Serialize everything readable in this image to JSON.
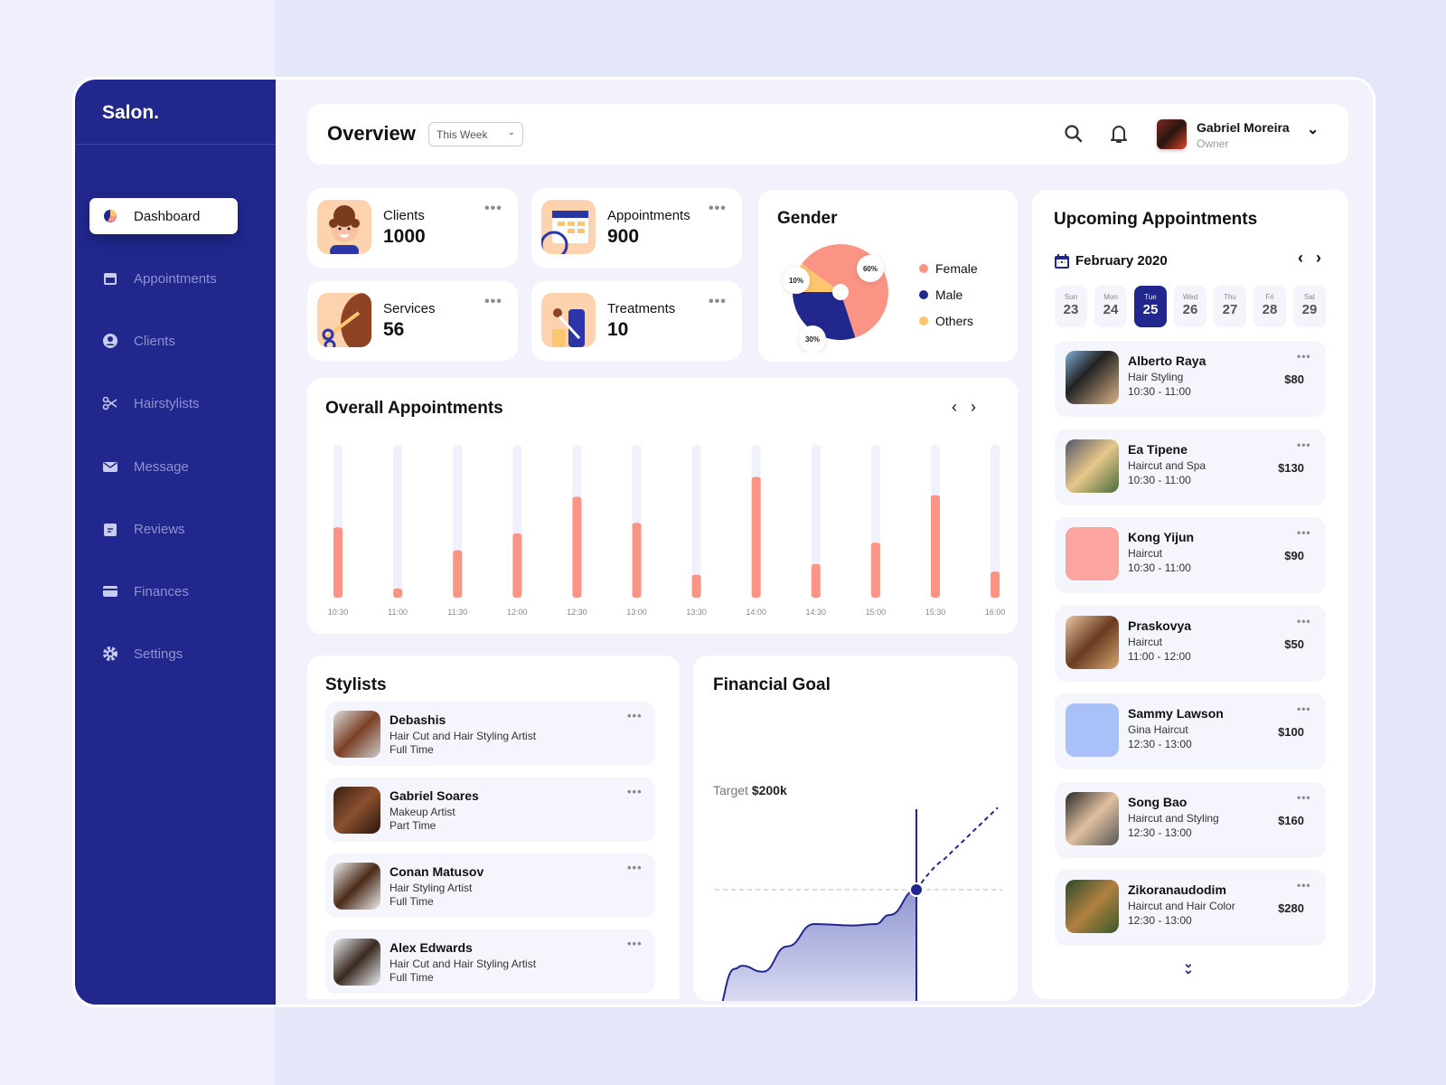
{
  "brand": "Salon.",
  "sidebar": {
    "items": [
      {
        "label": "Dashboard",
        "icon": "pie-chart-icon",
        "active": true
      },
      {
        "label": "Appointments",
        "icon": "calendar-icon"
      },
      {
        "label": "Clients",
        "icon": "user-circle-icon"
      },
      {
        "label": "Hairstylists",
        "icon": "scissors-icon"
      },
      {
        "label": "Message",
        "icon": "mail-icon"
      },
      {
        "label": "Reviews",
        "icon": "clipboard-icon"
      },
      {
        "label": "Finances",
        "icon": "credit-card-icon"
      },
      {
        "label": "Settings",
        "icon": "gear-icon"
      }
    ]
  },
  "header": {
    "title": "Overview",
    "period": "This Week",
    "user": {
      "name": "Gabriel Moreira",
      "role": "Owner"
    }
  },
  "stats": [
    {
      "label": "Clients",
      "value": "1000",
      "icon": "client-face-icon"
    },
    {
      "label": "Appointments",
      "value": "900",
      "icon": "calendar-clock-icon"
    },
    {
      "label": "Services",
      "value": "56",
      "icon": "scissors-hair-icon"
    },
    {
      "label": "Treatments",
      "value": "10",
      "icon": "bottles-icon"
    }
  ],
  "gender": {
    "title": "Gender"
  },
  "overall": {
    "title": "Overall Appointments"
  },
  "stylists": {
    "title": "Stylists",
    "items": [
      {
        "name": "Debashis",
        "role": "Hair Cut and Hair Styling Artist",
        "type": "Full Time"
      },
      {
        "name": "Gabriel Soares",
        "role": "Makeup Artist",
        "type": "Part Time"
      },
      {
        "name": "Conan Matusov",
        "role": "Hair Styling Artist",
        "type": "Full Time"
      },
      {
        "name": "Alex Edwards",
        "role": "Hair Cut and Hair Styling Artist",
        "type": "Full Time"
      }
    ]
  },
  "financial": {
    "title": "Financial Goal",
    "target_label": "Target",
    "target_value": "$200k"
  },
  "upcoming": {
    "title": "Upcoming Appointments",
    "month": "February 2020",
    "days": [
      {
        "d": "Sun",
        "n": "23"
      },
      {
        "d": "Mon",
        "n": "24"
      },
      {
        "d": "Tue",
        "n": "25",
        "selected": true
      },
      {
        "d": "Wed",
        "n": "26"
      },
      {
        "d": "Thu",
        "n": "27"
      },
      {
        "d": "Fri",
        "n": "28"
      },
      {
        "d": "Sat",
        "n": "29"
      }
    ],
    "items": [
      {
        "name": "Alberto Raya",
        "service": "Hair Styling",
        "time": "10:30 - 11:00",
        "price": "$80"
      },
      {
        "name": "Ea Tipene",
        "service": "Haircut and Spa",
        "time": "10:30 - 11:00",
        "price": "$130"
      },
      {
        "name": "Kong Yijun",
        "service": "Haircut",
        "time": "10:30 - 11:00",
        "price": "$90"
      },
      {
        "name": "Praskovya",
        "service": "Haircut",
        "time": "11:00 - 12:00",
        "price": "$50"
      },
      {
        "name": "Sammy Lawson",
        "service": "Gina Haircut",
        "time": "12:30 - 13:00",
        "price": "$100"
      },
      {
        "name": "Song Bao",
        "service": "Haircut and Styling",
        "time": "12:30 - 13:00",
        "price": "$160"
      },
      {
        "name": "Zikoranaudodim",
        "service": "Haircut and Hair Color",
        "time": "12:30 - 13:00",
        "price": "$280"
      }
    ]
  },
  "colors": {
    "navy": "#21278d",
    "coral": "#fb9485",
    "yellow": "#fcc66e",
    "track": "#eff1fc"
  },
  "chart_data": [
    {
      "type": "pie",
      "title": "Gender",
      "slices": [
        {
          "name": "Female",
          "value": 60,
          "label": "60%",
          "color": "#fb9485"
        },
        {
          "name": "Male",
          "value": 30,
          "label": "30%",
          "color": "#21278d"
        },
        {
          "name": "Others",
          "value": 10,
          "label": "10%",
          "color": "#fcc66e"
        }
      ],
      "legend": "right"
    },
    {
      "type": "bar",
      "title": "Overall Appointments",
      "categories": [
        "10:30",
        "11:00",
        "11:30",
        "12:00",
        "12:30",
        "13:00",
        "13:30",
        "14:00",
        "14:30",
        "15:00",
        "15:30",
        "16:00"
      ],
      "values": [
        0.46,
        0.06,
        0.31,
        0.42,
        0.66,
        0.49,
        0.15,
        0.79,
        0.22,
        0.36,
        0.67,
        0.17
      ],
      "ylim": [
        0,
        1
      ],
      "grid": false
    },
    {
      "type": "area",
      "title": "Financial Goal",
      "target": "$200k",
      "actual_relative_to_target": [
        0.16,
        0.47,
        0.49,
        0.45,
        0.62,
        0.77,
        0.76,
        0.77,
        0.83,
        1.0
      ],
      "projection_relative_to_target": [
        1.0,
        1.2,
        1.35,
        1.55
      ]
    }
  ]
}
